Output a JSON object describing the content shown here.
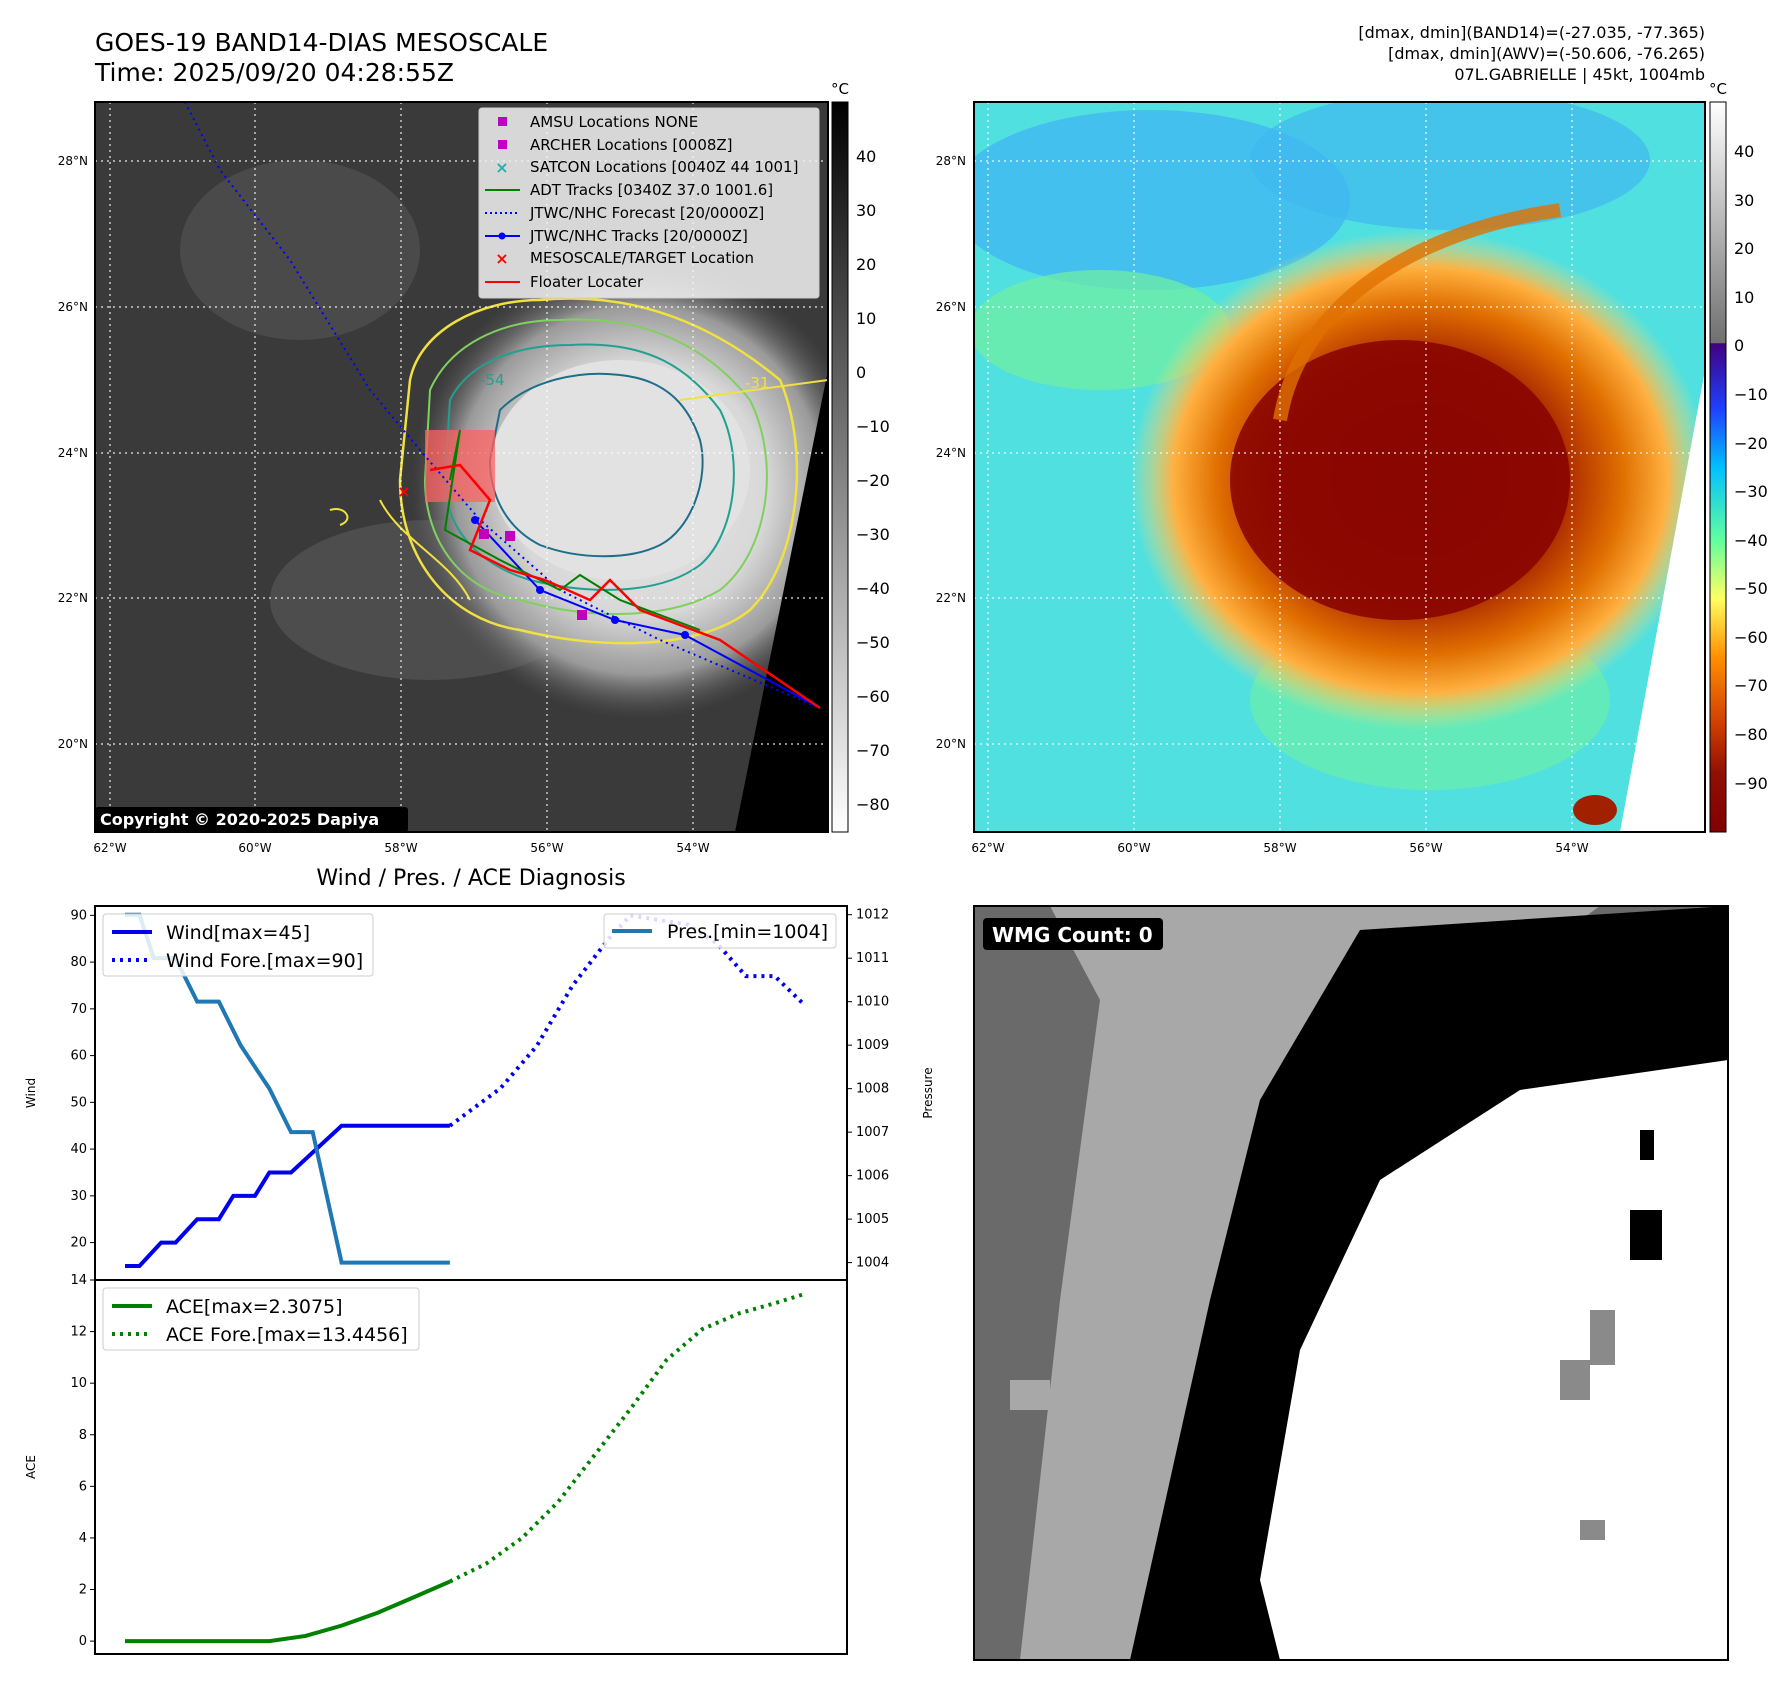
{
  "header": {
    "title_line1": "GOES-19 BAND14-DIAS MESOSCALE",
    "title_line2": "Time: 2025/09/20 04:28:55Z",
    "stats_line1": "[dmax, dmin](BAND14)=(-27.035, -77.365)",
    "stats_line2": "[dmax, dmin](AWV)=(-50.606, -76.265)",
    "stats_line3": "07L.GABRIELLE | 45kt, 1004mb"
  },
  "ir_map": {
    "copyright": "Copyright © 2020-2025 Dapiya",
    "lat_labels": [
      "28°N",
      "26°N",
      "24°N",
      "22°N",
      "20°N"
    ],
    "lon_labels": [
      "62°W",
      "60°W",
      "58°W",
      "56°W",
      "54°W"
    ],
    "contour_labels": [
      "-54",
      "-31"
    ],
    "legend": [
      {
        "label": "AMSU Locations NONE",
        "kind": "square",
        "color": "#c000c0"
      },
      {
        "label": "ARCHER Locations [0008Z]",
        "kind": "square",
        "color": "#c000c0"
      },
      {
        "label": "SATCON Locations [0040Z 44 1001]",
        "kind": "x",
        "color": "#20b0b0"
      },
      {
        "label": "ADT Tracks [0340Z 37.0 1001.6]",
        "kind": "line",
        "color": "#008000"
      },
      {
        "label": "JTWC/NHC Forecast [20/0000Z]",
        "kind": "dotted",
        "color": "#0000ff"
      },
      {
        "label": "JTWC/NHC Tracks [20/0000Z]",
        "kind": "line-dot",
        "color": "#0000ff"
      },
      {
        "label": "MESOSCALE/TARGET Location",
        "kind": "x",
        "color": "#ff0000"
      },
      {
        "label": "Floater Locater",
        "kind": "line",
        "color": "#ff0000"
      }
    ],
    "colorbar": {
      "unit": "°C",
      "ticks": [
        "40",
        "30",
        "20",
        "10",
        "0",
        "−10",
        "−20",
        "−30",
        "−40",
        "−50",
        "−60",
        "−70",
        "−80"
      ]
    }
  },
  "awv_map": {
    "lat_labels": [
      "28°N",
      "26°N",
      "24°N",
      "22°N",
      "20°N"
    ],
    "lon_labels": [
      "62°W",
      "60°W",
      "58°W",
      "56°W",
      "54°W"
    ],
    "colorbar": {
      "unit": "°C",
      "ticks": [
        "40",
        "30",
        "20",
        "10",
        "0",
        "−10",
        "−20",
        "−30",
        "−40",
        "−50",
        "−60",
        "−70",
        "−80",
        "−90"
      ]
    }
  },
  "wmg": {
    "label": "WMG Count: 0"
  },
  "chart_data": [
    {
      "type": "line",
      "title": "Wind / Pres. / ACE Diagnosis",
      "ylabel": "Wind",
      "ylabel_right": "Pressure",
      "ylim": [
        12,
        92
      ],
      "ylim_right": [
        1003.6,
        1012.2
      ],
      "yticks": [
        "90",
        "80",
        "70",
        "60",
        "50",
        "40",
        "30",
        "20"
      ],
      "yticks_right": [
        "1012",
        "1011",
        "1010",
        "1009",
        "1008",
        "1007",
        "1006",
        "1005",
        "1004"
      ],
      "series": [
        {
          "name": "Wind[max=45]",
          "axis": "left",
          "style": "solid",
          "color": "#0000ee",
          "x": [
            0,
            2,
            5,
            7,
            10,
            13,
            15,
            18,
            20,
            23,
            30,
            45
          ],
          "values": [
            15,
            15,
            20,
            20,
            25,
            25,
            30,
            30,
            35,
            35,
            45,
            45
          ]
        },
        {
          "name": "Wind Fore.[max=90]",
          "axis": "left",
          "style": "dotted",
          "color": "#0000ee",
          "x": [
            45,
            52,
            57,
            62,
            67,
            70,
            74,
            78,
            82,
            86,
            90,
            94
          ],
          "values": [
            45,
            53,
            62,
            75,
            85,
            90,
            89,
            88,
            84,
            77,
            77,
            71
          ]
        },
        {
          "name": "Pres.[min=1004]",
          "axis": "right",
          "style": "solid",
          "color": "#1f77b4",
          "x": [
            0,
            2,
            4,
            7,
            10,
            13,
            16,
            20,
            23,
            26,
            30,
            45
          ],
          "values": [
            1012,
            1012,
            1011,
            1011,
            1010,
            1010,
            1009,
            1008,
            1007,
            1007,
            1004,
            1004
          ]
        }
      ],
      "legend_left": [
        "Wind[max=45]",
        "Wind Fore.[max=90]"
      ],
      "legend_right": [
        "Pres.[min=1004]"
      ]
    },
    {
      "type": "line",
      "ylabel": "ACE",
      "ylim": [
        -0.5,
        14
      ],
      "yticks": [
        "14",
        "12",
        "10",
        "8",
        "6",
        "4",
        "2",
        "0"
      ],
      "series": [
        {
          "name": "ACE[max=2.3075]",
          "style": "solid",
          "color": "#008000",
          "x": [
            0,
            10,
            20,
            25,
            30,
            35,
            40,
            45
          ],
          "values": [
            0,
            0,
            0,
            0.2,
            0.6,
            1.1,
            1.7,
            2.31
          ]
        },
        {
          "name": "ACE Fore.[max=13.4456]",
          "style": "dotted",
          "color": "#008000",
          "x": [
            45,
            50,
            55,
            60,
            65,
            70,
            75,
            80,
            85,
            90,
            94
          ],
          "values": [
            2.31,
            3.0,
            4.0,
            5.4,
            7.2,
            9.0,
            10.9,
            12.1,
            12.7,
            13.1,
            13.45
          ]
        }
      ]
    }
  ]
}
